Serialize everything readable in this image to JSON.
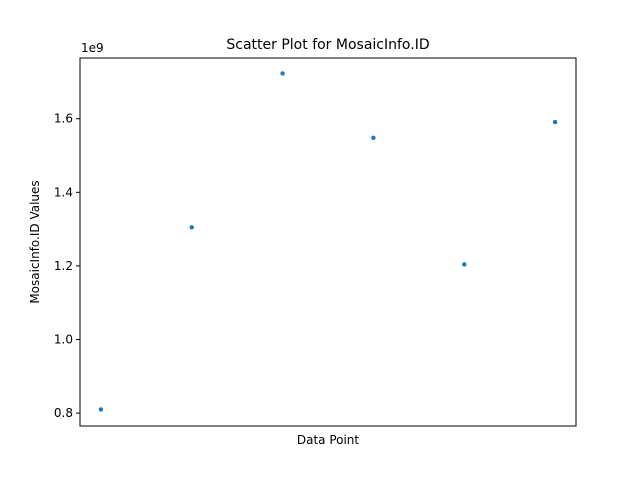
{
  "chart_data": {
    "type": "scatter",
    "title": "Scatter Plot for MosaicInfo.ID",
    "xlabel": "Data Point",
    "ylabel": "MosaicInfo.ID Values",
    "offset_label": "1e9",
    "x": [
      0,
      1,
      2,
      3,
      4,
      5
    ],
    "y": [
      810000000,
      1305000000,
      1723000000,
      1548000000,
      1204000000,
      1591000000
    ],
    "ylim": [
      765000000.0,
      1765000000.0
    ],
    "xlim": [
      -0.23,
      5.23
    ],
    "yticks": [
      800000000.0,
      1000000000.0,
      1200000000.0,
      1400000000.0,
      1600000000.0
    ],
    "ytick_labels": [
      "0.8",
      "1.0",
      "1.2",
      "1.4",
      "1.6"
    ],
    "grid": false,
    "point_color": "#1f77b4"
  }
}
